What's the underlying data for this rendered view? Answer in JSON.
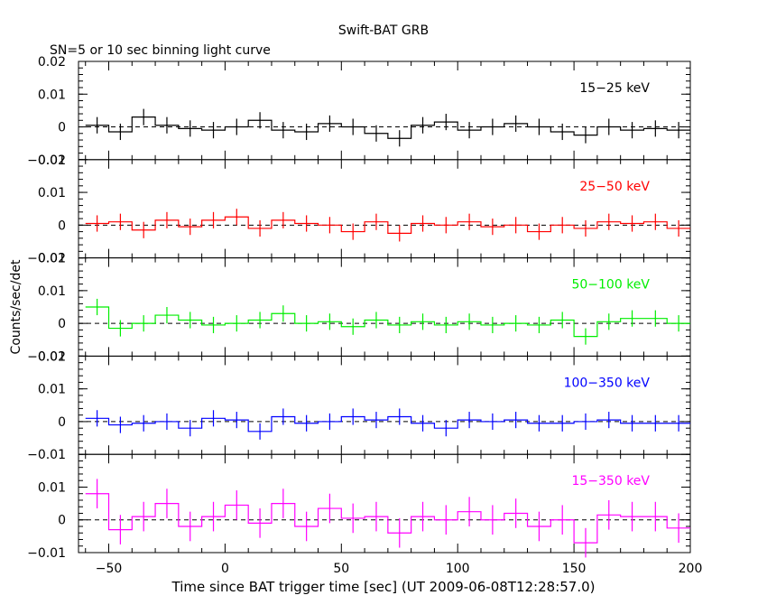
{
  "title": "Swift-BAT GRB",
  "subtitle": "SN=5 or 10 sec binning light curve",
  "xlabel": "Time since BAT trigger time [sec] (UT 2009-06-08T12:28:57.0)",
  "ylabel": "Counts/sec/det",
  "chart_data": {
    "type": "line",
    "title": "Swift-BAT GRB",
    "subtitle": "SN=5 or 10 sec binning light curve",
    "xlabel": "Time since BAT trigger time [sec] (UT 2009-06-08T12:28:57.0)",
    "ylabel": "Counts/sec/det",
    "xlim": [
      -63,
      200
    ],
    "x_ticks": [
      -50,
      0,
      50,
      100,
      150,
      200
    ],
    "x_tick_labels": [
      "−50",
      "0",
      "50",
      "100",
      "150",
      "200"
    ],
    "bin_width": 10,
    "x": [
      -55,
      -45,
      -35,
      -25,
      -15,
      -5,
      5,
      15,
      25,
      35,
      45,
      55,
      65,
      75,
      85,
      95,
      105,
      115,
      125,
      135,
      145,
      155,
      165,
      175,
      185,
      195
    ],
    "panels": [
      {
        "name": "15−25 keV",
        "color": "#000000",
        "ylim": [
          -0.01,
          0.02
        ],
        "yticks": [
          -0.01,
          0,
          0.01,
          0.02
        ],
        "ytick_labels": [
          "−0.01",
          "0",
          "0.01",
          "0.02"
        ],
        "values": [
          0.0005,
          -0.0015,
          0.003,
          0.0005,
          -0.0005,
          -0.001,
          0.0,
          0.002,
          -0.001,
          -0.0015,
          0.001,
          0.0,
          -0.002,
          -0.0035,
          0.0005,
          0.0015,
          -0.001,
          0.0,
          0.001,
          0.0,
          -0.0015,
          -0.0025,
          0.0,
          -0.001,
          -0.0005,
          -0.001
        ],
        "errors": [
          0.0025,
          0.0025,
          0.0025,
          0.0025,
          0.0025,
          0.0025,
          0.0025,
          0.0025,
          0.0025,
          0.0025,
          0.0025,
          0.0025,
          0.0025,
          0.0025,
          0.0025,
          0.0025,
          0.0025,
          0.0025,
          0.0025,
          0.0025,
          0.0025,
          0.0025,
          0.0025,
          0.0025,
          0.0025,
          0.0025
        ]
      },
      {
        "name": "25−50 keV",
        "color": "#ff0000",
        "ylim": [
          -0.01,
          0.02
        ],
        "yticks": [
          -0.01,
          0,
          0.01,
          0.02
        ],
        "ytick_labels": [
          "−0.01",
          "0",
          "0.01",
          "0.02"
        ],
        "values": [
          0.0005,
          0.001,
          -0.0015,
          0.0015,
          -0.0005,
          0.0015,
          0.0025,
          -0.001,
          0.0015,
          0.0005,
          0.0,
          -0.002,
          0.001,
          -0.0025,
          0.0005,
          0.0,
          0.001,
          -0.0005,
          0.0,
          -0.002,
          0.0,
          -0.001,
          0.001,
          0.0005,
          0.001,
          -0.001
        ],
        "errors": [
          0.0025,
          0.0025,
          0.0025,
          0.0025,
          0.0025,
          0.0025,
          0.0025,
          0.0025,
          0.0025,
          0.0025,
          0.0025,
          0.0025,
          0.0025,
          0.0025,
          0.0025,
          0.0025,
          0.0025,
          0.0025,
          0.0025,
          0.0025,
          0.0025,
          0.0025,
          0.0025,
          0.0025,
          0.0025,
          0.0025
        ]
      },
      {
        "name": "50−100 keV",
        "color": "#00ee00",
        "ylim": [
          -0.01,
          0.02
        ],
        "yticks": [
          -0.01,
          0,
          0.01,
          0.02
        ],
        "ytick_labels": [
          "−0.01",
          "0",
          "0.01",
          "0.02"
        ],
        "values": [
          0.005,
          -0.0015,
          0.0,
          0.0025,
          0.001,
          -0.0005,
          0.0,
          0.001,
          0.003,
          0.0,
          0.0005,
          -0.001,
          0.001,
          -0.0005,
          0.0005,
          -0.0005,
          0.0005,
          -0.0005,
          0.0,
          -0.0005,
          0.001,
          -0.004,
          0.0005,
          0.0015,
          0.0015,
          0.0
        ],
        "errors": [
          0.0025,
          0.0025,
          0.0025,
          0.0025,
          0.0025,
          0.0025,
          0.0025,
          0.0025,
          0.0025,
          0.0025,
          0.0025,
          0.0025,
          0.0025,
          0.0025,
          0.0025,
          0.0025,
          0.0025,
          0.0025,
          0.0025,
          0.0025,
          0.0025,
          0.0025,
          0.0025,
          0.0025,
          0.0025,
          0.0025
        ]
      },
      {
        "name": "100−350 keV",
        "color": "#0000ff",
        "ylim": [
          -0.01,
          0.02
        ],
        "yticks": [
          -0.01,
          0,
          0.01,
          0.02
        ],
        "ytick_labels": [
          "−0.01",
          "0",
          "0.01",
          "0.02"
        ],
        "values": [
          0.001,
          -0.001,
          -0.0005,
          0.0,
          -0.002,
          0.001,
          0.0005,
          -0.003,
          0.0015,
          -0.0005,
          0.0,
          0.0015,
          0.0005,
          0.0015,
          -0.0005,
          -0.002,
          0.0005,
          0.0,
          0.0005,
          -0.0005,
          -0.0005,
          0.0,
          0.0005,
          -0.0005,
          -0.0005,
          -0.0005
        ],
        "errors": [
          0.0025,
          0.0025,
          0.0025,
          0.0025,
          0.0025,
          0.0025,
          0.0025,
          0.0025,
          0.0025,
          0.0025,
          0.0025,
          0.0025,
          0.0025,
          0.0025,
          0.0025,
          0.0025,
          0.0025,
          0.0025,
          0.0025,
          0.0025,
          0.0025,
          0.0025,
          0.0025,
          0.0025,
          0.0025,
          0.0025
        ]
      },
      {
        "name": "15−350 keV",
        "color": "#ff00ff",
        "ylim": [
          -0.01,
          0.02
        ],
        "yticks": [
          -0.01,
          0,
          0.01
        ],
        "ytick_labels": [
          "−0.01",
          "0",
          "0.01"
        ],
        "values": [
          0.008,
          -0.003,
          0.001,
          0.005,
          -0.002,
          0.001,
          0.0045,
          -0.001,
          0.005,
          -0.002,
          0.0035,
          0.0005,
          0.001,
          -0.004,
          0.001,
          0.0,
          0.0025,
          0.0,
          0.002,
          -0.002,
          0.0,
          -0.007,
          0.0015,
          0.001,
          0.001,
          -0.0025
        ],
        "errors": [
          0.0045,
          0.0045,
          0.0045,
          0.0045,
          0.0045,
          0.0045,
          0.0045,
          0.0045,
          0.0045,
          0.0045,
          0.0045,
          0.0045,
          0.0045,
          0.0045,
          0.0045,
          0.0045,
          0.0045,
          0.0045,
          0.0045,
          0.0045,
          0.0045,
          0.0045,
          0.0045,
          0.0045,
          0.0045,
          0.0045
        ]
      }
    ]
  }
}
